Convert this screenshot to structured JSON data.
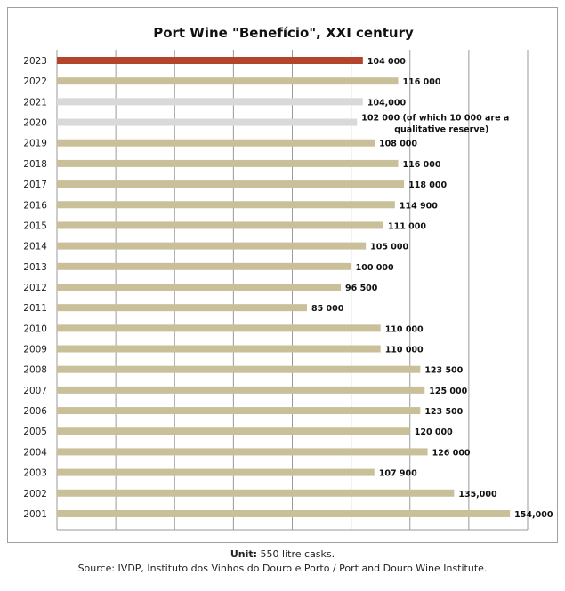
{
  "chart_data": {
    "type": "bar",
    "orientation": "horizontal",
    "title": "Port Wine \"Benefício\",  XXI century",
    "categories": [
      "2023",
      "2022",
      "2021",
      "2020",
      "2019",
      "2018",
      "2017",
      "2016",
      "2015",
      "2014",
      "2013",
      "2012",
      "2011",
      "2010",
      "2009",
      "2008",
      "2007",
      "2006",
      "2005",
      "2004",
      "2003",
      "2002",
      "2001"
    ],
    "values": [
      104000,
      116000,
      104000,
      102000,
      108000,
      116000,
      118000,
      114900,
      111000,
      105000,
      100000,
      96500,
      85000,
      110000,
      110000,
      123500,
      125000,
      123500,
      120000,
      126000,
      107900,
      135000,
      154000
    ],
    "data_labels": [
      "104 000",
      "116 000",
      "104,000",
      "102 000 (of which 10 000  are a qualitative reserve)",
      "108 000",
      "116 000",
      "118 000",
      "114 900",
      "111 000",
      "105 000",
      "100 000",
      "96 500",
      "85 000",
      "110 000",
      "110 000",
      "123 500",
      "125 000",
      "123 500",
      "120 000",
      "126 000",
      "107 900",
      "135,000",
      "154,000"
    ],
    "bar_colors": [
      "#b5452a",
      "#c9c09a",
      "#d9d9d9",
      "#d9d9d9",
      "#c9c09a",
      "#c9c09a",
      "#c9c09a",
      "#c9c09a",
      "#c9c09a",
      "#c9c09a",
      "#c9c09a",
      "#c9c09a",
      "#c9c09a",
      "#c9c09a",
      "#c9c09a",
      "#c9c09a",
      "#c9c09a",
      "#c9c09a",
      "#c9c09a",
      "#c9c09a",
      "#c9c09a",
      "#c9c09a",
      "#c9c09a"
    ],
    "xlim": [
      0,
      160000
    ],
    "x_gridline_step": 20000,
    "grid": true,
    "xlabel": "",
    "ylabel": ""
  },
  "footer": {
    "unit_label": "Unit:",
    "unit_text": " 550 litre casks.",
    "source": "Source: IVDP, Instituto dos Vinhos do Douro e Porto / Port and Douro Wine Institute."
  }
}
